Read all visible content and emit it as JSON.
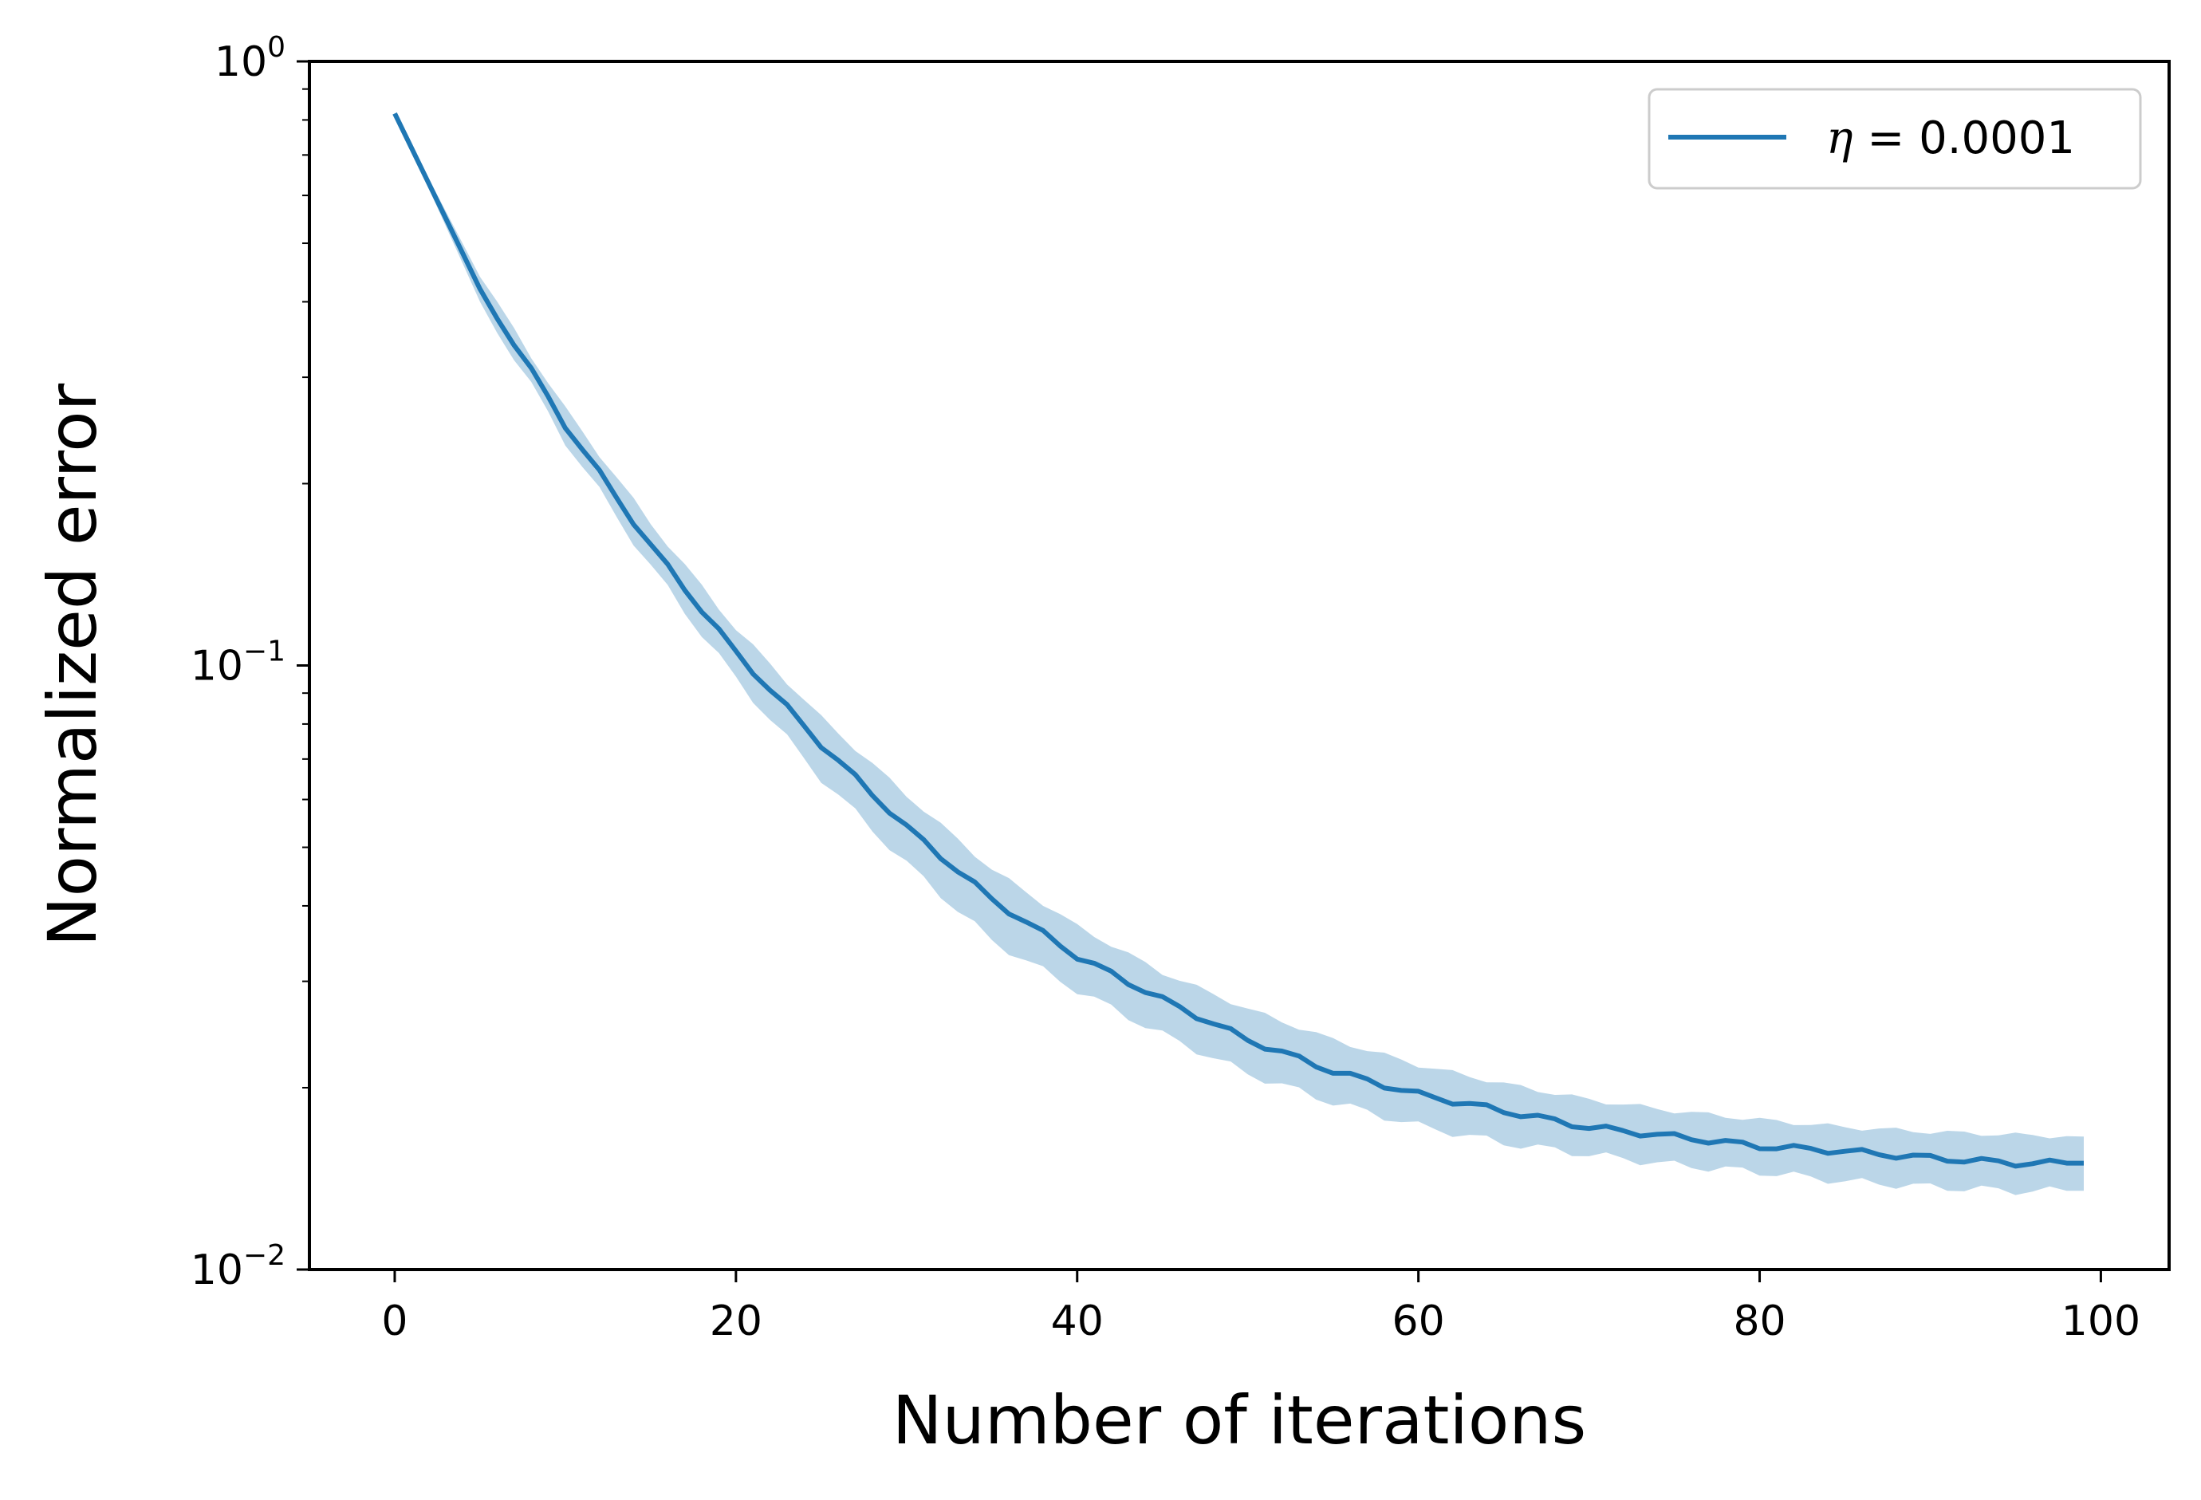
{
  "chart_data": {
    "type": "line",
    "title": "",
    "xlabel": "Number of iterations",
    "ylabel": "Normalized error",
    "xlim": [
      -5,
      104
    ],
    "ylim": [
      0.01,
      1
    ],
    "yscale": "log",
    "x_ticks": [
      0,
      20,
      40,
      60,
      80,
      100
    ],
    "x_tick_labels": [
      "0",
      "20",
      "40",
      "60",
      "80",
      "100"
    ],
    "y_ticks": [
      {
        "value": 1,
        "base": "10",
        "exp": "0"
      },
      {
        "value": 0.1,
        "base": "10",
        "exp": "−1"
      },
      {
        "value": 0.01,
        "base": "10",
        "exp": "−2"
      }
    ],
    "grid": false,
    "legend": {
      "position": "top-right",
      "entries": [
        {
          "label_symbol": "η",
          "label_rest": " = 0.0001"
        }
      ]
    },
    "series": [
      {
        "name": "η = 0.0001",
        "color": "#1f77b4",
        "band_color": "#1f77b4",
        "band_opacity": 0.3,
        "anchors": {
          "x": [
            0,
            5,
            10,
            15,
            20,
            25,
            30,
            35,
            40,
            45,
            50,
            55,
            60,
            65,
            70,
            75,
            80,
            85,
            90,
            95,
            99
          ],
          "y": [
            0.82,
            0.42,
            0.25,
            0.158,
            0.105,
            0.074,
            0.054,
            0.041,
            0.033,
            0.028,
            0.024,
            0.0213,
            0.0195,
            0.0183,
            0.0172,
            0.0166,
            0.016,
            0.0157,
            0.0153,
            0.015,
            0.015
          ],
          "lower": [
            0.82,
            0.4,
            0.235,
            0.146,
            0.095,
            0.065,
            0.047,
            0.035,
            0.029,
            0.0245,
            0.0211,
            0.0189,
            0.0173,
            0.0162,
            0.0155,
            0.0149,
            0.0145,
            0.014,
            0.0137,
            0.0135,
            0.0135
          ],
          "upper": [
            0.82,
            0.44,
            0.266,
            0.172,
            0.115,
            0.082,
            0.061,
            0.046,
            0.037,
            0.031,
            0.027,
            0.024,
            0.0218,
            0.0203,
            0.0191,
            0.0183,
            0.0177,
            0.0172,
            0.0169,
            0.0167,
            0.0166
          ]
        }
      }
    ]
  }
}
